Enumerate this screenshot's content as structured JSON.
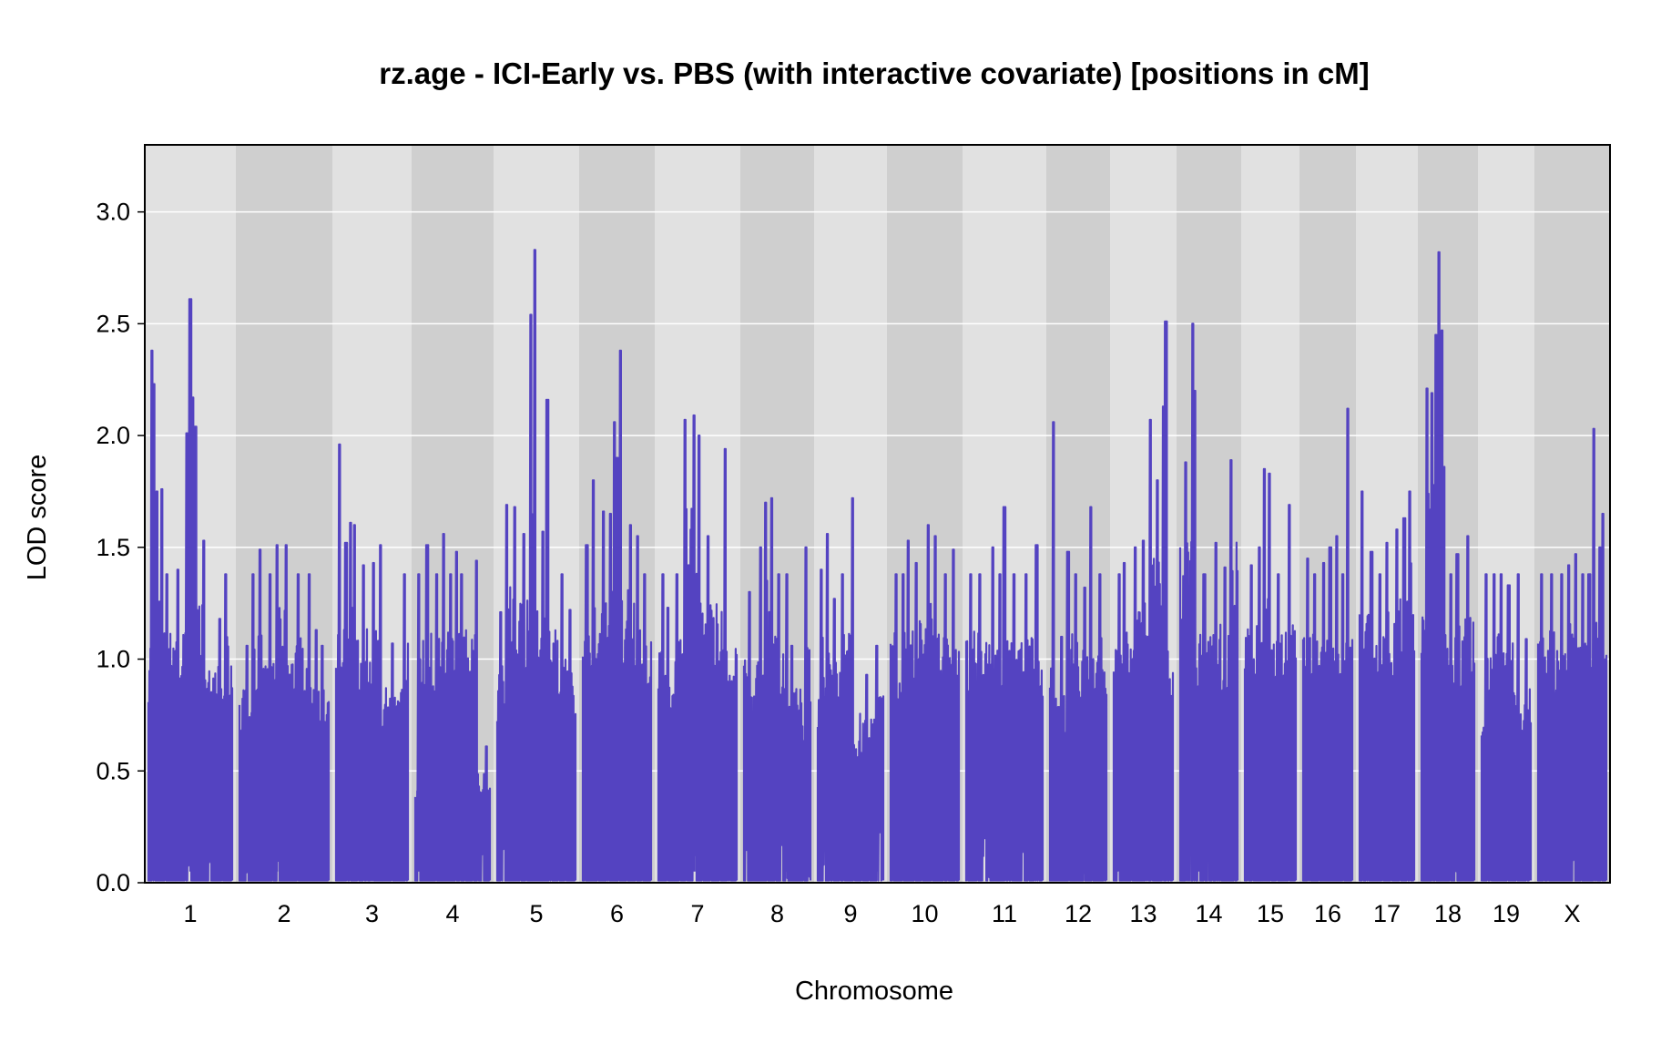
{
  "chart_data": {
    "type": "line",
    "title": "rz.age - ICI-Early vs. PBS (with interactive covariate) [positions in cM]",
    "xlabel": "Chromosome",
    "ylabel": "LOD score",
    "ylim": [
      0,
      3.3
    ],
    "yticks": [
      "0.0",
      "0.5",
      "1.0",
      "1.5",
      "2.0",
      "2.5",
      "3.0"
    ],
    "grid": true,
    "series": [
      {
        "color": "#5443c1",
        "chromosomes": [
          {
            "name": "1",
            "peaks": [
              [
                0.04,
                2.38
              ],
              [
                0.06,
                2.23
              ],
              [
                0.1,
                1.75
              ],
              [
                0.16,
                1.76
              ],
              [
                0.22,
                1.38
              ],
              [
                0.35,
                1.4
              ],
              [
                0.46,
                2.01
              ],
              [
                0.5,
                2.61
              ],
              [
                0.53,
                2.17
              ],
              [
                0.56,
                2.04
              ],
              [
                0.66,
                1.53
              ],
              [
                0.85,
                1.18
              ],
              [
                0.92,
                1.38
              ]
            ]
          },
          {
            "name": "2",
            "peaks": [
              [
                0.08,
                1.06
              ],
              [
                0.15,
                1.38
              ],
              [
                0.23,
                1.49
              ],
              [
                0.34,
                1.38
              ],
              [
                0.42,
                1.51
              ],
              [
                0.52,
                1.51
              ],
              [
                0.66,
                1.38
              ],
              [
                0.78,
                1.38
              ],
              [
                0.86,
                1.13
              ],
              [
                0.93,
                1.06
              ]
            ]
          },
          {
            "name": "3",
            "peaks": [
              [
                0.05,
                1.96
              ],
              [
                0.14,
                1.52
              ],
              [
                0.2,
                1.61
              ],
              [
                0.26,
                1.6
              ],
              [
                0.38,
                1.42
              ],
              [
                0.52,
                1.43
              ],
              [
                0.62,
                1.51
              ],
              [
                0.78,
                1.07
              ],
              [
                0.95,
                1.38
              ]
            ]
          },
          {
            "name": "4",
            "peaks": [
              [
                0.05,
                1.38
              ],
              [
                0.16,
                1.51
              ],
              [
                0.29,
                1.38
              ],
              [
                0.38,
                1.56
              ],
              [
                0.47,
                1.38
              ],
              [
                0.55,
                1.48
              ],
              [
                0.62,
                1.38
              ],
              [
                0.82,
                1.44
              ],
              [
                0.95,
                0.61
              ]
            ]
          },
          {
            "name": "5",
            "peaks": [
              [
                0.05,
                1.21
              ],
              [
                0.12,
                1.69
              ],
              [
                0.22,
                1.68
              ],
              [
                0.34,
                1.56
              ],
              [
                0.43,
                2.54
              ],
              [
                0.48,
                2.83
              ],
              [
                0.58,
                1.57
              ],
              [
                0.64,
                2.16
              ],
              [
                0.83,
                1.38
              ],
              [
                0.93,
                1.22
              ]
            ]
          },
          {
            "name": "6",
            "peaks": [
              [
                0.06,
                1.51
              ],
              [
                0.16,
                1.8
              ],
              [
                0.3,
                1.66
              ],
              [
                0.4,
                1.65
              ],
              [
                0.46,
                2.06
              ],
              [
                0.5,
                1.9
              ],
              [
                0.55,
                2.38
              ],
              [
                0.7,
                1.6
              ],
              [
                0.8,
                1.55
              ],
              [
                0.9,
                1.38
              ]
            ]
          },
          {
            "name": "7",
            "peaks": [
              [
                0.06,
                1.38
              ],
              [
                0.12,
                1.23
              ],
              [
                0.24,
                1.38
              ],
              [
                0.34,
                2.07
              ],
              [
                0.46,
                2.09
              ],
              [
                0.52,
                2.0
              ],
              [
                0.63,
                1.55
              ],
              [
                0.85,
                1.94
              ]
            ]
          },
          {
            "name": "8",
            "peaks": [
              [
                0.08,
                1.3
              ],
              [
                0.25,
                1.5
              ],
              [
                0.33,
                1.7
              ],
              [
                0.42,
                1.72
              ],
              [
                0.52,
                1.38
              ],
              [
                0.64,
                1.38
              ],
              [
                0.72,
                1.06
              ],
              [
                0.93,
                1.5
              ]
            ]
          },
          {
            "name": "9",
            "peaks": [
              [
                0.05,
                1.4
              ],
              [
                0.14,
                1.56
              ],
              [
                0.26,
                1.27
              ],
              [
                0.38,
                1.38
              ],
              [
                0.53,
                1.72
              ],
              [
                0.75,
                0.93
              ],
              [
                0.9,
                1.06
              ]
            ]
          },
          {
            "name": "10",
            "peaks": [
              [
                0.08,
                1.38
              ],
              [
                0.18,
                1.38
              ],
              [
                0.26,
                1.53
              ],
              [
                0.38,
                1.43
              ],
              [
                0.55,
                1.6
              ],
              [
                0.66,
                1.55
              ],
              [
                0.8,
                1.38
              ],
              [
                0.92,
                1.49
              ]
            ]
          },
          {
            "name": "11",
            "peaks": [
              [
                0.06,
                1.38
              ],
              [
                0.18,
                1.38
              ],
              [
                0.35,
                1.5
              ],
              [
                0.44,
                1.38
              ],
              [
                0.5,
                1.68
              ],
              [
                0.62,
                1.38
              ],
              [
                0.78,
                1.38
              ],
              [
                0.92,
                1.51
              ]
            ]
          },
          {
            "name": "12",
            "peaks": [
              [
                0.06,
                2.06
              ],
              [
                0.2,
                1.1
              ],
              [
                0.32,
                1.48
              ],
              [
                0.45,
                1.38
              ],
              [
                0.62,
                1.32
              ],
              [
                0.72,
                1.68
              ],
              [
                0.88,
                1.38
              ]
            ]
          },
          {
            "name": "13",
            "peaks": [
              [
                0.1,
                1.38
              ],
              [
                0.18,
                1.43
              ],
              [
                0.36,
                1.5
              ],
              [
                0.5,
                1.53
              ],
              [
                0.62,
                2.07
              ],
              [
                0.74,
                1.8
              ],
              [
                0.84,
                2.13
              ],
              [
                0.88,
                2.51
              ]
            ]
          },
          {
            "name": "14",
            "peaks": [
              [
                0.1,
                1.88
              ],
              [
                0.22,
                2.5
              ],
              [
                0.26,
                2.2
              ],
              [
                0.42,
                1.38
              ],
              [
                0.62,
                1.52
              ],
              [
                0.78,
                1.41
              ],
              [
                0.88,
                1.89
              ]
            ]
          },
          {
            "name": "15",
            "peaks": [
              [
                0.12,
                1.42
              ],
              [
                0.28,
                1.5
              ],
              [
                0.38,
                1.85
              ],
              [
                0.48,
                1.83
              ],
              [
                0.65,
                1.38
              ],
              [
                0.88,
                1.69
              ]
            ]
          },
          {
            "name": "16",
            "peaks": [
              [
                0.1,
                1.45
              ],
              [
                0.24,
                1.38
              ],
              [
                0.42,
                1.43
              ],
              [
                0.55,
                1.5
              ],
              [
                0.68,
                1.55
              ],
              [
                0.8,
                1.38
              ],
              [
                0.9,
                2.12
              ]
            ]
          },
          {
            "name": "17",
            "peaks": [
              [
                0.05,
                1.75
              ],
              [
                0.22,
                1.48
              ],
              [
                0.38,
                1.38
              ],
              [
                0.5,
                1.52
              ],
              [
                0.68,
                1.58
              ],
              [
                0.82,
                1.63
              ],
              [
                0.92,
                1.75
              ]
            ]
          },
          {
            "name": "18",
            "peaks": [
              [
                0.1,
                2.21
              ],
              [
                0.2,
                2.19
              ],
              [
                0.28,
                2.45
              ],
              [
                0.33,
                2.82
              ],
              [
                0.38,
                2.47
              ],
              [
                0.43,
                1.86
              ],
              [
                0.55,
                1.38
              ],
              [
                0.68,
                1.47
              ],
              [
                0.88,
                1.55
              ]
            ]
          },
          {
            "name": "19",
            "peaks": [
              [
                0.1,
                1.38
              ],
              [
                0.25,
                1.38
              ],
              [
                0.4,
                1.38
              ],
              [
                0.55,
                1.33
              ],
              [
                0.75,
                1.38
              ],
              [
                0.9,
                1.09
              ]
            ]
          },
          {
            "name": "X",
            "peaks": [
              [
                0.05,
                1.38
              ],
              [
                0.2,
                1.38
              ],
              [
                0.35,
                1.38
              ],
              [
                0.45,
                1.42
              ],
              [
                0.55,
                1.47
              ],
              [
                0.65,
                1.38
              ],
              [
                0.75,
                1.38
              ],
              [
                0.82,
                2.03
              ],
              [
                0.9,
                1.5
              ],
              [
                0.95,
                1.65
              ]
            ]
          }
        ]
      }
    ]
  }
}
